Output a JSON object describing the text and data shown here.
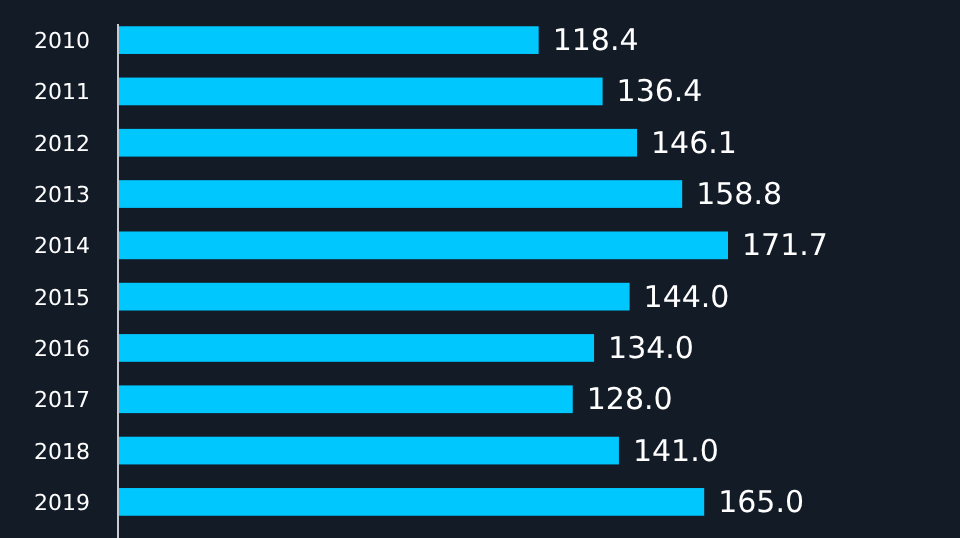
{
  "chart_data": {
    "type": "bar",
    "orientation": "horizontal",
    "categories": [
      "2010",
      "2011",
      "2012",
      "2013",
      "2014",
      "2015",
      "2016",
      "2017",
      "2018",
      "2019"
    ],
    "values": [
      118.4,
      136.4,
      146.1,
      158.8,
      171.7,
      144.0,
      134.0,
      128.0,
      141.0,
      165.0
    ],
    "value_labels": [
      "118.4",
      "136.4",
      "146.1",
      "158.8",
      "171.7",
      "144.0",
      "134.0",
      "128.0",
      "141.0",
      "165.0"
    ],
    "color": "#00c8ff"
  }
}
